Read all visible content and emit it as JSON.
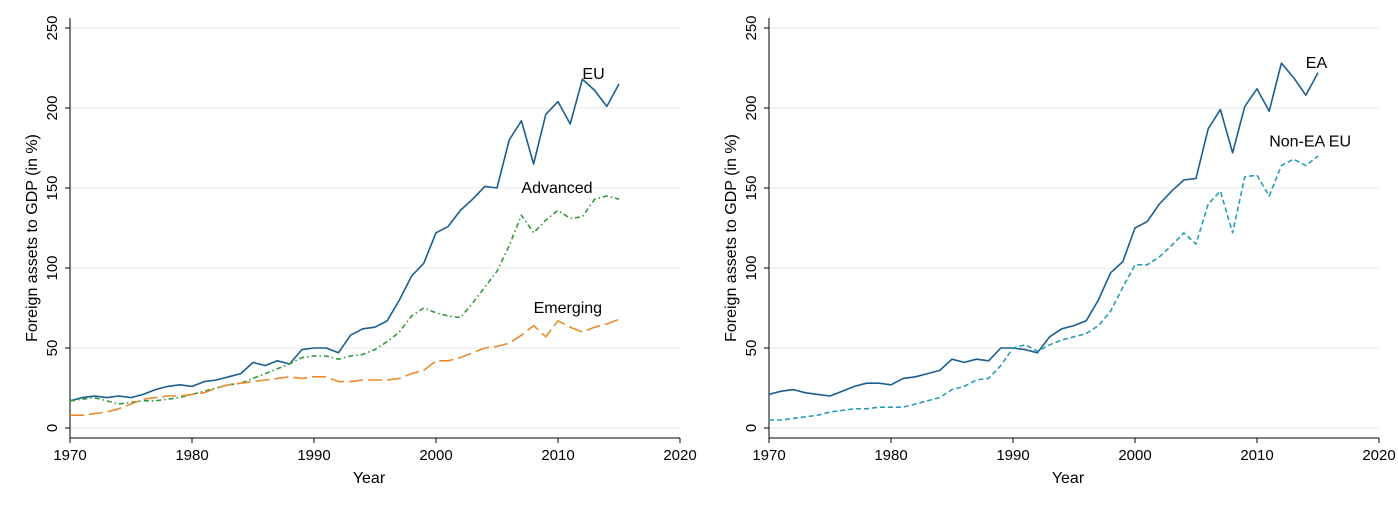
{
  "chart_data": [
    {
      "type": "line",
      "title": "",
      "xlabel": "Year",
      "ylabel": "Foreign assets to GDP (in %)",
      "xlim": [
        1970,
        2020
      ],
      "ylim": [
        0,
        250
      ],
      "xticks": [
        "1970",
        "1980",
        "1990",
        "2000",
        "2010",
        "2020"
      ],
      "yticks": [
        "0",
        "50",
        "100",
        "150",
        "200",
        "250"
      ],
      "grid": true,
      "x": [
        1970,
        1971,
        1972,
        1973,
        1974,
        1975,
        1976,
        1977,
        1978,
        1979,
        1980,
        1981,
        1982,
        1983,
        1984,
        1985,
        1986,
        1987,
        1988,
        1989,
        1990,
        1991,
        1992,
        1993,
        1994,
        1995,
        1996,
        1997,
        1998,
        1999,
        2000,
        2001,
        2002,
        2003,
        2004,
        2005,
        2006,
        2007,
        2008,
        2009,
        2010,
        2011,
        2012,
        2013,
        2014,
        2015
      ],
      "series": [
        {
          "name": "EU",
          "color": "#1a5f8f",
          "dash": "solid",
          "label_year": 2012,
          "label_value": 218,
          "values": [
            17,
            19,
            20,
            19,
            20,
            19,
            21,
            24,
            26,
            27,
            26,
            29,
            30,
            32,
            34,
            41,
            39,
            42,
            40,
            49,
            50,
            50,
            47,
            58,
            62,
            63,
            67,
            80,
            95,
            103,
            122,
            126,
            136,
            143,
            151,
            150,
            180,
            192,
            165,
            196,
            204,
            190,
            218,
            211,
            201,
            215
          ]
        },
        {
          "name": "Advanced",
          "color": "#2e9a3a",
          "dash": "dashdot",
          "label_year": 2007,
          "label_value": 147,
          "values": [
            17,
            18,
            19,
            17,
            15,
            16,
            17,
            17,
            18,
            19,
            21,
            23,
            25,
            27,
            28,
            31,
            34,
            37,
            40,
            44,
            45,
            45,
            43,
            45,
            46,
            49,
            54,
            60,
            70,
            75,
            72,
            70,
            69,
            78,
            88,
            98,
            114,
            133,
            122,
            130,
            136,
            131,
            132,
            143,
            145,
            143
          ]
        },
        {
          "name": "Emerging",
          "color": "#e88a2e",
          "dash": "longdash",
          "label_year": 2008,
          "label_value": 72,
          "values": [
            8,
            8,
            9,
            10,
            12,
            15,
            18,
            19,
            20,
            20,
            21,
            22,
            25,
            27,
            28,
            29,
            30,
            31,
            32,
            31,
            32,
            32,
            29,
            29,
            30,
            30,
            30,
            31,
            34,
            36,
            42,
            42,
            44,
            47,
            50,
            51,
            53,
            58,
            64,
            57,
            67,
            63,
            60,
            63,
            65,
            68
          ]
        }
      ]
    },
    {
      "type": "line",
      "title": "",
      "xlabel": "Year",
      "ylabel": "Foreign assets to GDP (in %)",
      "xlim": [
        1970,
        2020
      ],
      "ylim": [
        0,
        250
      ],
      "xticks": [
        "1970",
        "1980",
        "1990",
        "2000",
        "2010",
        "2020"
      ],
      "yticks": [
        "0",
        "50",
        "100",
        "150",
        "200",
        "250"
      ],
      "grid": true,
      "x": [
        1970,
        1971,
        1972,
        1973,
        1974,
        1975,
        1976,
        1977,
        1978,
        1979,
        1980,
        1981,
        1982,
        1983,
        1984,
        1985,
        1986,
        1987,
        1988,
        1989,
        1990,
        1991,
        1992,
        1993,
        1994,
        1995,
        1996,
        1997,
        1998,
        1999,
        2000,
        2001,
        2002,
        2003,
        2004,
        2005,
        2006,
        2007,
        2008,
        2009,
        2010,
        2011,
        2012,
        2013,
        2014,
        2015
      ],
      "series": [
        {
          "name": "EA",
          "color": "#1a5f8f",
          "dash": "solid",
          "label_year": 2014,
          "label_value": 225,
          "values": [
            21,
            23,
            24,
            22,
            21,
            20,
            23,
            26,
            28,
            28,
            27,
            31,
            32,
            34,
            36,
            43,
            41,
            43,
            42,
            50,
            50,
            49,
            47,
            57,
            62,
            64,
            67,
            80,
            97,
            104,
            125,
            129,
            140,
            148,
            155,
            156,
            187,
            199,
            172,
            201,
            212,
            198,
            228,
            219,
            208,
            222
          ]
        },
        {
          "name": "Non-EA EU",
          "color": "#2a9db3",
          "dash": "dash",
          "label_year": 2011,
          "label_value": 176,
          "values": [
            5,
            5,
            6,
            7,
            8,
            10,
            11,
            12,
            12,
            13,
            13,
            13,
            15,
            17,
            19,
            24,
            26,
            30,
            31,
            39,
            50,
            52,
            48,
            52,
            55,
            57,
            59,
            64,
            73,
            88,
            102,
            102,
            107,
            114,
            122,
            115,
            140,
            148,
            122,
            157,
            158,
            145,
            164,
            168,
            164,
            170
          ]
        }
      ]
    }
  ]
}
